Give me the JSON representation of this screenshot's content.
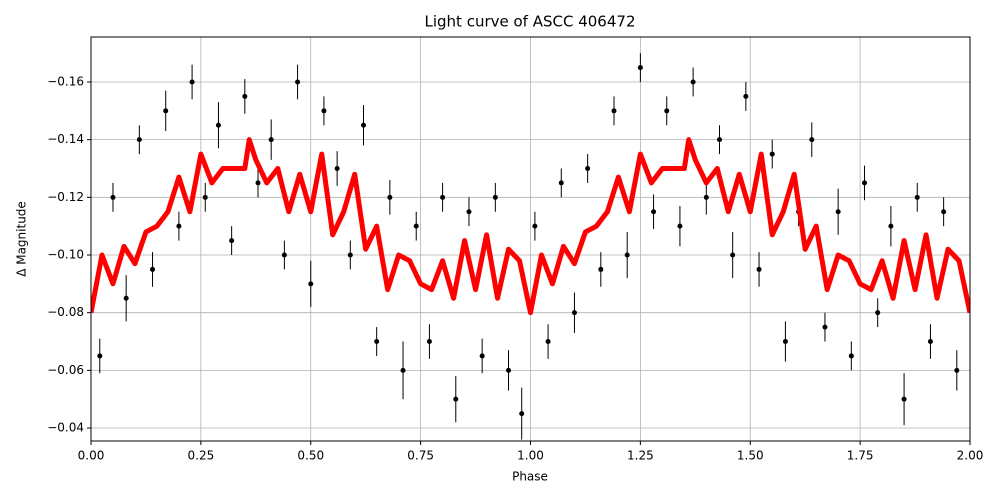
{
  "chart_data": {
    "type": "scatter",
    "title": "Light curve of ASCC 406472",
    "x_label": "Phase",
    "y_label": "Δ Magnitude",
    "xlim": [
      0,
      2
    ],
    "ylim": [
      -0.0355,
      -0.1756
    ],
    "xticks": [
      {
        "value": 0,
        "label": "0.00"
      },
      {
        "value": 0.25,
        "label": "0.25"
      },
      {
        "value": 0.5,
        "label": "0.50"
      },
      {
        "value": 0.75,
        "label": "0.75"
      },
      {
        "value": 1,
        "label": "1.00"
      },
      {
        "value": 1.25,
        "label": "1.25"
      },
      {
        "value": 1.5,
        "label": "1.50"
      },
      {
        "value": 1.75,
        "label": "1.75"
      },
      {
        "value": 2,
        "label": "2.00"
      }
    ],
    "yticks": [
      {
        "value": -0.16,
        "label": "−0.16"
      },
      {
        "value": -0.14,
        "label": "−0.14"
      },
      {
        "value": -0.12,
        "label": "−0.12"
      },
      {
        "value": -0.1,
        "label": "−0.10"
      },
      {
        "value": -0.08,
        "label": "−0.08"
      },
      {
        "value": -0.06,
        "label": "−0.06"
      },
      {
        "value": -0.04,
        "label": "−0.04"
      }
    ],
    "grid": true,
    "series": [
      {
        "type": "scatter",
        "color": "#000000",
        "x": [
          0.02,
          0.05,
          0.08,
          0.11,
          0.14,
          0.17,
          0.2,
          0.23,
          0.26,
          0.29,
          0.32,
          0.35,
          0.38,
          0.41,
          0.44,
          0.47,
          0.5,
          0.53,
          0.56,
          0.59,
          0.62,
          0.65,
          0.68,
          0.71,
          0.74,
          0.77,
          0.8,
          0.83,
          0.86,
          0.89,
          0.92,
          0.95,
          0.98,
          1.01,
          1.04,
          1.07,
          1.1,
          1.13,
          1.16,
          1.19,
          1.22,
          1.25,
          1.28,
          1.31,
          1.34,
          1.37,
          1.4,
          1.43,
          1.46,
          1.49,
          1.52,
          1.55,
          1.58,
          1.61,
          1.64,
          1.67,
          1.7,
          1.73,
          1.76,
          1.79,
          1.82,
          1.85,
          1.88,
          1.91,
          1.94,
          1.97
        ],
        "values": [
          -0.065,
          -0.12,
          -0.085,
          -0.14,
          -0.095,
          -0.15,
          -0.11,
          -0.16,
          -0.12,
          -0.145,
          -0.105,
          -0.155,
          -0.125,
          -0.14,
          -0.1,
          -0.16,
          -0.09,
          -0.15,
          -0.13,
          -0.1,
          -0.145,
          -0.07,
          -0.12,
          -0.06,
          -0.11,
          -0.07,
          -0.12,
          -0.05,
          -0.115,
          -0.065,
          -0.12,
          -0.06,
          -0.045,
          -0.11,
          -0.07,
          -0.125,
          -0.08,
          -0.13,
          -0.095,
          -0.15,
          -0.1,
          -0.165,
          -0.115,
          -0.15,
          -0.11,
          -0.16,
          -0.12,
          -0.14,
          -0.1,
          -0.155,
          -0.095,
          -0.135,
          -0.07,
          -0.115,
          -0.14,
          -0.075,
          -0.115,
          -0.065,
          -0.125,
          -0.08,
          -0.11,
          -0.05,
          -0.12,
          -0.07,
          -0.115,
          -0.06
        ],
        "errors": [
          0.006,
          0.005,
          0.008,
          0.005,
          0.006,
          0.007,
          0.005,
          0.006,
          0.005,
          0.008,
          0.005,
          0.006,
          0.005,
          0.007,
          0.005,
          0.006,
          0.008,
          0.005,
          0.006,
          0.005,
          0.007,
          0.005,
          0.006,
          0.01,
          0.005,
          0.006,
          0.005,
          0.008,
          0.005,
          0.006,
          0.005,
          0.007,
          0.009,
          0.005,
          0.006,
          0.005,
          0.007,
          0.005,
          0.006,
          0.005,
          0.008,
          0.005,
          0.006,
          0.005,
          0.007,
          0.005,
          0.006,
          0.005,
          0.008,
          0.005,
          0.006,
          0.005,
          0.007,
          0.005,
          0.006,
          0.005,
          0.008,
          0.005,
          0.006,
          0.005,
          0.007,
          0.009,
          0.005,
          0.006,
          0.005,
          0.007
        ]
      },
      {
        "type": "line",
        "color": "#ff0000",
        "x": [
          0,
          0.025,
          0.05,
          0.075,
          0.1,
          0.125,
          0.15,
          0.175,
          0.2,
          0.225,
          0.25,
          0.275,
          0.3,
          0.325,
          0.35,
          0.36,
          0.375,
          0.4,
          0.425,
          0.45,
          0.475,
          0.5,
          0.525,
          0.55,
          0.575,
          0.6,
          0.625,
          0.65,
          0.675,
          0.7,
          0.725,
          0.75,
          0.775,
          0.8,
          0.825,
          0.85,
          0.875,
          0.9,
          0.925,
          0.95,
          0.975,
          1,
          1.025,
          1.05,
          1.075,
          1.1,
          1.125,
          1.15,
          1.175,
          1.2,
          1.225,
          1.25,
          1.275,
          1.3,
          1.325,
          1.35,
          1.36,
          1.375,
          1.4,
          1.425,
          1.45,
          1.475,
          1.5,
          1.525,
          1.55,
          1.575,
          1.6,
          1.625,
          1.65,
          1.675,
          1.7,
          1.725,
          1.75,
          1.775,
          1.8,
          1.825,
          1.85,
          1.875,
          1.9,
          1.925,
          1.95,
          1.975,
          2
        ],
        "values": [
          -0.08,
          -0.1,
          -0.09,
          -0.103,
          -0.097,
          -0.108,
          -0.11,
          -0.115,
          -0.127,
          -0.115,
          -0.135,
          -0.125,
          -0.13,
          -0.13,
          -0.13,
          -0.14,
          -0.133,
          -0.125,
          -0.13,
          -0.115,
          -0.128,
          -0.115,
          -0.135,
          -0.107,
          -0.115,
          -0.128,
          -0.102,
          -0.11,
          -0.088,
          -0.1,
          -0.098,
          -0.09,
          -0.088,
          -0.098,
          -0.085,
          -0.105,
          -0.088,
          -0.107,
          -0.085,
          -0.102,
          -0.098,
          -0.08,
          -0.1,
          -0.09,
          -0.103,
          -0.097,
          -0.108,
          -0.11,
          -0.115,
          -0.127,
          -0.115,
          -0.135,
          -0.125,
          -0.13,
          -0.13,
          -0.13,
          -0.14,
          -0.133,
          -0.125,
          -0.13,
          -0.115,
          -0.128,
          -0.115,
          -0.135,
          -0.107,
          -0.115,
          -0.128,
          -0.102,
          -0.11,
          -0.088,
          -0.1,
          -0.098,
          -0.09,
          -0.088,
          -0.098,
          -0.085,
          -0.105,
          -0.088,
          -0.107,
          -0.085,
          -0.102,
          -0.098,
          -0.08
        ]
      }
    ]
  }
}
